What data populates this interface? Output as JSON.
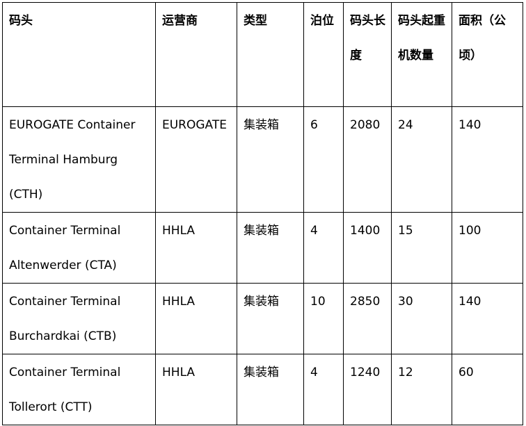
{
  "table": {
    "headers": [
      "码头",
      "运营商",
      "类型",
      "泊位",
      "码头长度",
      "码头起重机数量",
      "面积（公顷）"
    ],
    "rows": [
      [
        "EUROGATE Container Terminal Hamburg (CTH)",
        "EUROGATE",
        "集装箱",
        "6",
        "2080",
        "24",
        "140"
      ],
      [
        "Container Terminal Altenwerder (CTA)",
        "HHLA",
        "集装箱",
        "4",
        "1400",
        "15",
        "100"
      ],
      [
        "Container Terminal Burchardkai (CTB)",
        "HHLA",
        "集装箱",
        "10",
        "2850",
        "30",
        "140"
      ],
      [
        "Container Terminal Tollerort (CTT)",
        "HHLA",
        "集装箱",
        "4",
        "1240",
        "12",
        "60"
      ]
    ]
  }
}
